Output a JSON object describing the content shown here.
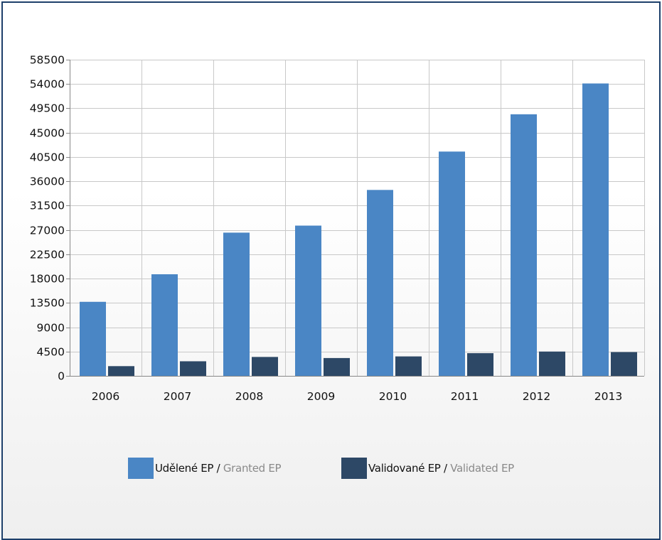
{
  "chart_data": {
    "type": "bar",
    "categories": [
      "2006",
      "2007",
      "2008",
      "2009",
      "2010",
      "2011",
      "2012",
      "2013"
    ],
    "series": [
      {
        "name": "Udělené EP / Granted EP",
        "values": [
          13700,
          18800,
          26500,
          27800,
          34400,
          41500,
          48400,
          54100
        ]
      },
      {
        "name": "Validované EP / Validated EP",
        "values": [
          1800,
          2700,
          3500,
          3300,
          3600,
          4200,
          4500,
          4400
        ]
      }
    ],
    "yticks": [
      "0",
      "4500",
      "9000",
      "13500",
      "18000",
      "22500",
      "27000",
      "31500",
      "36000",
      "40500",
      "45000",
      "49500",
      "54000",
      "58500"
    ],
    "ylim": [
      0,
      58500
    ],
    "grid": true,
    "legend_position": "bottom",
    "colors": {
      "granted": "#4a86c5",
      "validated": "#2d4866",
      "grid": "#c8c8c8",
      "axis": "#888888"
    }
  },
  "legend": {
    "granted_cz": "Udělené EP",
    "granted_sep": " / ",
    "granted_en": "Granted EP",
    "validated_cz": "Validované EP",
    "validated_sep": " / ",
    "validated_en": "Validated EP"
  }
}
